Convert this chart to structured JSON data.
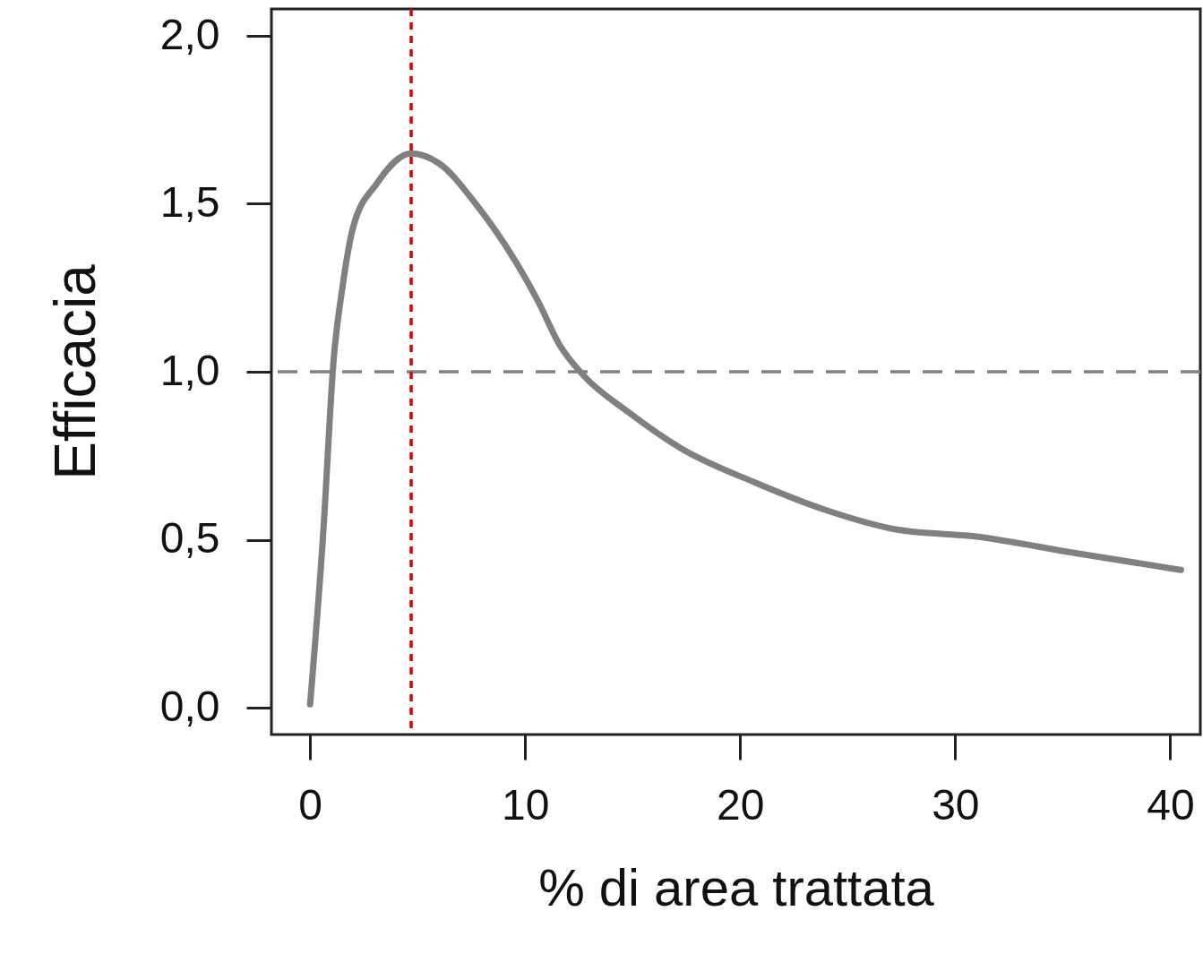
{
  "chart_data": {
    "type": "line",
    "xlabel": "% di area trattata",
    "ylabel": "Efficacia",
    "x": [
      0,
      0.6,
      1.1,
      1.5,
      2.0,
      3.1,
      4.7,
      6.0,
      7.7,
      10.6,
      11.6,
      12.7,
      14.8,
      17.3,
      20.7,
      23.9,
      27.3,
      30.9,
      35.6,
      40.5
    ],
    "series": [
      {
        "color": "#808080",
        "values": [
          0.01,
          0.51,
          1.04,
          1.25,
          1.43,
          1.56,
          1.65,
          1.62,
          1.5,
          1.21,
          1.08,
          0.99,
          0.88,
          0.77,
          0.67,
          0.59,
          0.53,
          0.51,
          0.46,
          0.41
        ]
      }
    ],
    "line_style": "solid",
    "marker": "none",
    "xlim": [
      -1.8,
      41.4
    ],
    "ylim": [
      -0.08,
      2.08
    ],
    "xticks": [
      0,
      10,
      20,
      30,
      40
    ],
    "yticks": [
      {
        "value": 0,
        "label": "0,0"
      },
      {
        "value": 0.5,
        "label": "0,5"
      },
      {
        "value": 1,
        "label": "1,0"
      },
      {
        "value": 1.5,
        "label": "1,5"
      },
      {
        "value": 2,
        "label": "2,0"
      }
    ],
    "ref_lines": [
      {
        "axis": "y",
        "value": 1,
        "color": "#808080",
        "line_style": "dashed"
      },
      {
        "axis": "x",
        "value": 4.7,
        "color": "#e00000",
        "line_style": "dotted"
      }
    ]
  }
}
